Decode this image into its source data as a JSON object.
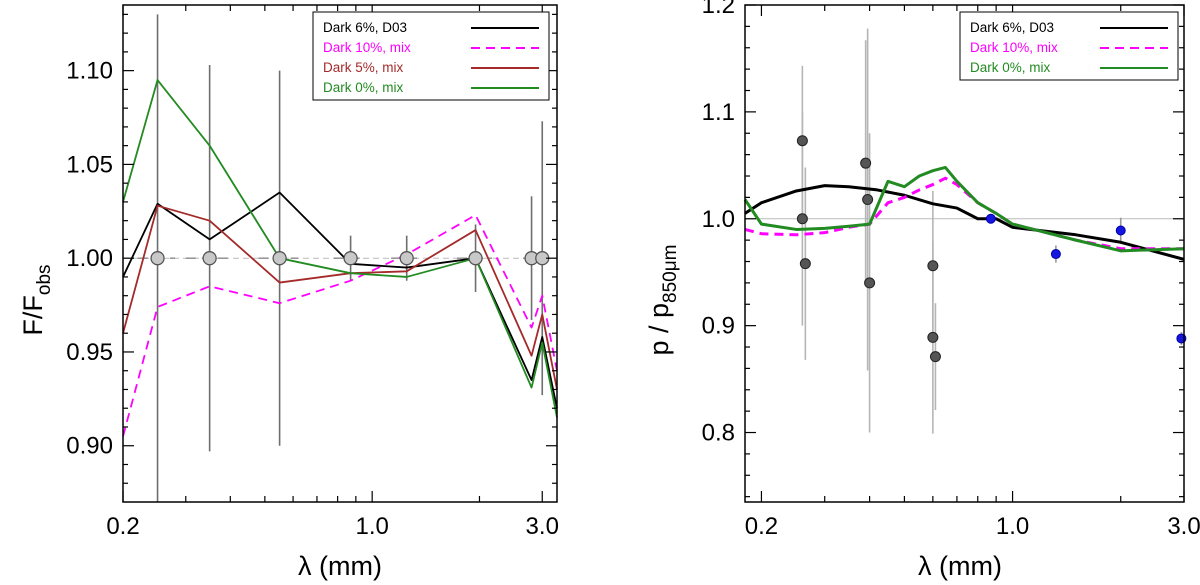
{
  "chart_data": [
    {
      "type": "line",
      "xscale": "log",
      "xlim": [
        0.2,
        3.3
      ],
      "ylim": [
        0.87,
        1.135
      ],
      "xlabel": "λ (mm)",
      "ylabel": "F/F",
      "ylabel_sub": "obs",
      "xticks": [
        0.2,
        1.0,
        3.0
      ],
      "xtick_labels": [
        "0.2",
        "1.0",
        "3.0"
      ],
      "yticks": [
        0.9,
        0.95,
        1.0,
        1.05,
        1.1
      ],
      "ytick_labels": [
        "0.90",
        "0.95",
        "1.00",
        "1.05",
        "1.10"
      ],
      "reference_line": 1.0,
      "legend_position": "top-right",
      "series": [
        {
          "name": "Dark  6%, D03",
          "color": "#000000",
          "dash": "",
          "x": [
            0.2,
            0.25,
            0.35,
            0.55,
            0.87,
            1.25,
            1.95,
            2.8,
            3.0,
            3.3
          ],
          "y": [
            0.99,
            1.029,
            1.01,
            1.035,
            0.997,
            0.995,
            1.0,
            0.935,
            0.958,
            0.92
          ]
        },
        {
          "name": "Dark 10%, mix",
          "color": "#ff00ff",
          "dash": "9,6",
          "x": [
            0.2,
            0.25,
            0.35,
            0.55,
            0.87,
            1.25,
            1.95,
            2.8,
            3.0,
            3.3
          ],
          "y": [
            0.905,
            0.974,
            0.985,
            0.976,
            0.988,
            1.002,
            1.023,
            0.963,
            0.98,
            0.94
          ]
        },
        {
          "name": "Dark   5%, mix",
          "color": "#a52a2a",
          "dash": "",
          "x": [
            0.2,
            0.25,
            0.35,
            0.55,
            0.87,
            1.25,
            1.95,
            2.8,
            3.0,
            3.3
          ],
          "y": [
            0.96,
            1.028,
            1.02,
            0.987,
            0.992,
            0.993,
            1.015,
            0.948,
            0.97,
            0.93
          ]
        },
        {
          "name": "Dark   0%, mix",
          "color": "#228b22",
          "dash": "",
          "x": [
            0.2,
            0.25,
            0.35,
            0.55,
            0.87,
            1.25,
            1.95,
            2.8,
            3.0,
            3.3
          ],
          "y": [
            1.03,
            1.095,
            1.06,
            1.0,
            0.992,
            0.99,
            1.0,
            0.931,
            0.955,
            0.915
          ]
        }
      ],
      "points": {
        "x": [
          0.25,
          0.35,
          0.55,
          0.87,
          1.25,
          1.95,
          2.8,
          3.0
        ],
        "y": [
          1.0,
          1.0,
          1.0,
          1.0,
          1.0,
          1.0,
          1.0,
          1.0
        ],
        "yerr_low": [
          0.13,
          0.103,
          0.1,
          0.012,
          0.012,
          0.018,
          0.033,
          0.073
        ],
        "yerr_high": [
          0.13,
          0.103,
          0.1,
          0.012,
          0.012,
          0.018,
          0.033,
          0.073
        ],
        "xerr": [
          0.03,
          0.05,
          0.07,
          0.09,
          0.12,
          0.22,
          0.15,
          0.15
        ]
      }
    },
    {
      "type": "line",
      "xscale": "log",
      "xlim": [
        0.18,
        3.0
      ],
      "ylim": [
        0.735,
        1.2
      ],
      "xlabel": "λ (mm)",
      "ylabel": "p / p",
      "ylabel_sub": "850μm",
      "xticks": [
        0.2,
        1.0,
        3.0
      ],
      "xtick_labels": [
        "0.2",
        "1.0",
        "3.0"
      ],
      "yticks": [
        0.8,
        0.9,
        1.0,
        1.1,
        1.2
      ],
      "ytick_labels": [
        "0.8",
        "0.9",
        "1.0",
        "1.1",
        "1.2"
      ],
      "reference_line": 1.0,
      "legend_position": "top-right",
      "series": [
        {
          "name": "Dark  6%, D03",
          "color": "#000000",
          "dash": "",
          "width": 3,
          "x": [
            0.18,
            0.2,
            0.25,
            0.3,
            0.35,
            0.42,
            0.5,
            0.6,
            0.7,
            0.8,
            0.9,
            1.0,
            1.5,
            2.0,
            3.0
          ],
          "y": [
            1.005,
            1.015,
            1.026,
            1.031,
            1.03,
            1.027,
            1.022,
            1.014,
            1.01,
            1.0,
            1.0,
            0.992,
            0.985,
            0.978,
            0.962
          ]
        },
        {
          "name": "Dark 10%, mix",
          "color": "#ff00ff",
          "dash": "9,6",
          "width": 3,
          "x": [
            0.18,
            0.2,
            0.25,
            0.3,
            0.35,
            0.4,
            0.45,
            0.5,
            0.55,
            0.6,
            0.65,
            0.7,
            0.8,
            0.9,
            1.0,
            1.5,
            2.0,
            3.0
          ],
          "y": [
            0.99,
            0.986,
            0.985,
            0.987,
            0.992,
            0.995,
            1.015,
            1.02,
            1.027,
            1.032,
            1.038,
            1.032,
            1.015,
            1.005,
            0.995,
            0.98,
            0.972,
            0.972
          ]
        },
        {
          "name": "Dark   0%, mix",
          "color": "#228b22",
          "dash": "",
          "width": 3,
          "x": [
            0.18,
            0.2,
            0.25,
            0.3,
            0.35,
            0.4,
            0.45,
            0.5,
            0.55,
            0.6,
            0.65,
            0.7,
            0.8,
            0.9,
            1.0,
            1.5,
            2.0,
            3.0
          ],
          "y": [
            1.018,
            0.995,
            0.99,
            0.991,
            0.993,
            0.995,
            1.035,
            1.03,
            1.04,
            1.045,
            1.048,
            1.035,
            1.015,
            1.005,
            0.995,
            0.98,
            0.97,
            0.972
          ]
        }
      ],
      "points": [
        {
          "x": 0.26,
          "y": 1.073,
          "err": 0.07,
          "color": "#555555"
        },
        {
          "x": 0.26,
          "y": 1.0,
          "err": 0.1,
          "color": "#555555"
        },
        {
          "x": 0.265,
          "y": 0.958,
          "err": 0.09,
          "color": "#555555"
        },
        {
          "x": 0.39,
          "y": 1.052,
          "err": 0.115,
          "color": "#555555"
        },
        {
          "x": 0.395,
          "y": 1.018,
          "err": 0.16,
          "color": "#555555"
        },
        {
          "x": 0.4,
          "y": 0.94,
          "err": 0.14,
          "color": "#555555"
        },
        {
          "x": 0.6,
          "y": 0.956,
          "err": 0.07,
          "color": "#555555"
        },
        {
          "x": 0.6,
          "y": 0.889,
          "err": 0.09,
          "color": "#555555"
        },
        {
          "x": 0.61,
          "y": 0.871,
          "err": 0.05,
          "color": "#555555"
        },
        {
          "x": 0.87,
          "y": 1.0,
          "err": 0.004,
          "color": "#1515e0"
        },
        {
          "x": 1.32,
          "y": 0.967,
          "err": 0.008,
          "color": "#1515e0"
        },
        {
          "x": 2.0,
          "y": 0.989,
          "err": 0.012,
          "color": "#1515e0"
        },
        {
          "x": 2.95,
          "y": 0.888,
          "err": 0.006,
          "color": "#1515e0"
        }
      ]
    }
  ]
}
